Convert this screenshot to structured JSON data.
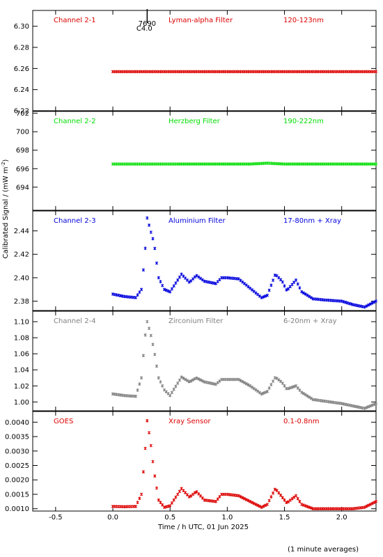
{
  "figure": {
    "ylabel": "Calibrated Signal / (mW m",
    "ylabel_sup": "-2",
    "ylabel_close": ")",
    "xlabel": "Time / h UTC, 01 Jun 2025",
    "footnote": "(1 minute averages)",
    "flare_marker": {
      "x": 0.3,
      "class_label": "C4.0",
      "id_label": "7690"
    }
  },
  "chart_data": [
    {
      "type": "scatter",
      "channel_label": "Channel 2-1",
      "filter_label": "Lyman-alpha Filter",
      "band_label": "120-123nm",
      "color": "#dd0000",
      "xlim": [
        -0.7,
        2.3
      ],
      "ylim": [
        6.22,
        6.315
      ],
      "yticks": [
        6.22,
        6.24,
        6.26,
        6.28,
        6.3
      ],
      "ytick_labels": [
        "6.22",
        "6.24",
        "6.26",
        "6.28",
        "6.30"
      ],
      "x": [
        0.0,
        2.3
      ],
      "y": [
        6.257,
        6.257
      ]
    },
    {
      "type": "scatter",
      "channel_label": "Channel 2-2",
      "filter_label": "Herzberg Filter",
      "band_label": "190-222nm",
      "color": "#00dd00",
      "xlim": [
        -0.7,
        2.3
      ],
      "ylim": [
        691.5,
        702.2
      ],
      "yticks": [
        694,
        696,
        698,
        700,
        702
      ],
      "ytick_labels": [
        "694",
        "696",
        "698",
        "700",
        "702"
      ],
      "x": [
        0.0,
        1.2,
        1.35,
        1.5,
        2.3
      ],
      "y": [
        696.5,
        696.5,
        696.6,
        696.5,
        696.5
      ]
    },
    {
      "type": "scatter",
      "channel_label": "Channel 2-3",
      "filter_label": "Aluminium Filter",
      "band_label": "17-80nm + Xray",
      "color": "#0000dd",
      "xlim": [
        -0.7,
        2.3
      ],
      "ylim": [
        2.372,
        2.457
      ],
      "yticks": [
        2.38,
        2.4,
        2.42,
        2.44
      ],
      "ytick_labels": [
        "2.38",
        "2.40",
        "2.42",
        "2.44"
      ],
      "x": [
        0.0,
        0.1,
        0.2,
        0.25,
        0.28,
        0.3,
        0.33,
        0.36,
        0.4,
        0.45,
        0.5,
        0.6,
        0.67,
        0.73,
        0.8,
        0.9,
        0.95,
        1.0,
        1.1,
        1.2,
        1.3,
        1.35,
        1.42,
        1.48,
        1.52,
        1.6,
        1.65,
        1.75,
        1.85,
        2.0,
        2.1,
        2.2,
        2.3
      ],
      "y": [
        2.386,
        2.384,
        2.383,
        2.39,
        2.42,
        2.451,
        2.44,
        2.43,
        2.4,
        2.39,
        2.388,
        2.403,
        2.396,
        2.402,
        2.397,
        2.395,
        2.4,
        2.4,
        2.399,
        2.391,
        2.383,
        2.385,
        2.403,
        2.397,
        2.389,
        2.398,
        2.388,
        2.382,
        2.381,
        2.38,
        2.377,
        2.375,
        2.38
      ]
    },
    {
      "type": "scatter",
      "channel_label": "Channel 2-4",
      "filter_label": "Zirconium Filter",
      "band_label": "6-20nm + Xray",
      "color": "#808080",
      "xlim": [
        -0.7,
        2.3
      ],
      "ylim": [
        0.989,
        1.113
      ],
      "yticks": [
        1.0,
        1.02,
        1.04,
        1.06,
        1.08,
        1.1
      ],
      "ytick_labels": [
        "1.00",
        "1.02",
        "1.04",
        "1.06",
        "1.08",
        "1.10"
      ],
      "x": [
        0.0,
        0.1,
        0.2,
        0.25,
        0.28,
        0.3,
        0.33,
        0.36,
        0.4,
        0.45,
        0.5,
        0.6,
        0.67,
        0.73,
        0.8,
        0.9,
        0.95,
        1.0,
        1.1,
        1.2,
        1.3,
        1.35,
        1.42,
        1.48,
        1.52,
        1.6,
        1.65,
        1.75,
        1.85,
        2.0,
        2.1,
        2.2,
        2.3
      ],
      "y": [
        1.01,
        1.008,
        1.007,
        1.03,
        1.08,
        1.1,
        1.085,
        1.065,
        1.03,
        1.015,
        1.008,
        1.031,
        1.025,
        1.03,
        1.025,
        1.022,
        1.028,
        1.028,
        1.028,
        1.02,
        1.01,
        1.013,
        1.031,
        1.024,
        1.016,
        1.02,
        1.012,
        1.003,
        1.001,
        0.998,
        0.995,
        0.992,
        0.998
      ]
    },
    {
      "type": "scatter",
      "channel_label": "GOES",
      "filter_label": "Xray Sensor",
      "band_label": "0.1-0.8nm",
      "color": "#dd0000",
      "xlim": [
        -0.7,
        2.3
      ],
      "ylim": [
        0.00092,
        0.00437
      ],
      "yticks": [
        0.001,
        0.0015,
        0.002,
        0.0025,
        0.003,
        0.0035,
        0.004
      ],
      "ytick_labels": [
        "0.0010",
        "0.0015",
        "0.0020",
        "0.0025",
        "0.0030",
        "0.0035",
        "0.0040"
      ],
      "x": [
        0.0,
        0.1,
        0.2,
        0.25,
        0.28,
        0.3,
        0.33,
        0.36,
        0.4,
        0.45,
        0.5,
        0.6,
        0.67,
        0.73,
        0.8,
        0.9,
        0.95,
        1.0,
        1.1,
        1.2,
        1.3,
        1.35,
        1.42,
        1.48,
        1.52,
        1.6,
        1.65,
        1.75,
        1.85,
        2.0,
        2.1,
        2.2,
        2.3
      ],
      "y": [
        0.00108,
        0.00107,
        0.00108,
        0.0015,
        0.0029,
        0.00405,
        0.0033,
        0.0023,
        0.0013,
        0.00105,
        0.0011,
        0.0017,
        0.0014,
        0.0016,
        0.0013,
        0.00125,
        0.0015,
        0.0015,
        0.00145,
        0.00125,
        0.00105,
        0.00115,
        0.0017,
        0.0014,
        0.0012,
        0.00145,
        0.00115,
        0.001,
        0.001,
        0.001,
        0.001,
        0.00105,
        0.00125
      ]
    }
  ],
  "xaxis": {
    "ticks": [
      -0.5,
      0.0,
      0.5,
      1.0,
      1.5,
      2.0
    ],
    "tick_labels": [
      "-0.5",
      "0.0",
      "0.5",
      "1.0",
      "1.5",
      "2.0"
    ]
  }
}
